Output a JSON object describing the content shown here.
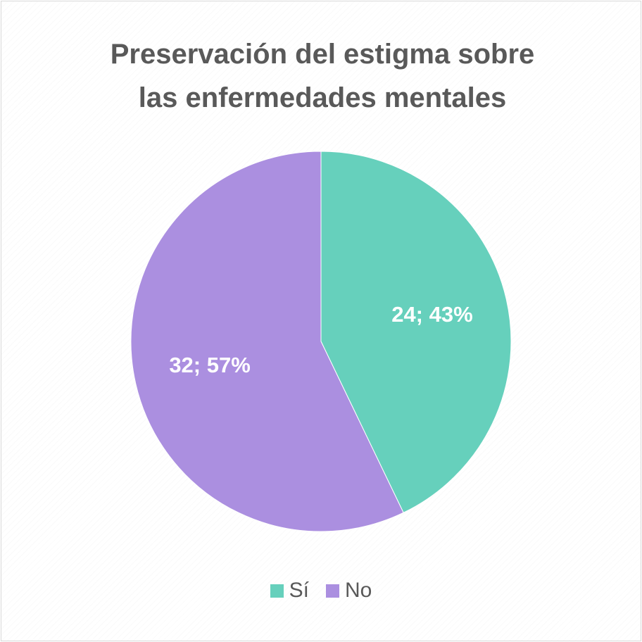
{
  "chart_data": {
    "type": "pie",
    "title_lines": [
      "Preservación del estigma sobre",
      "las enfermedades mentales"
    ],
    "slices": [
      {
        "label": "Sí",
        "value": 24,
        "percent": 43,
        "data_label": "24; 43%",
        "color": "#66d0bc"
      },
      {
        "label": "No",
        "value": 32,
        "percent": 57,
        "data_label": "32; 57%",
        "color": "#ab8fe0"
      }
    ],
    "start_angle_deg": 0,
    "direction": "clockwise",
    "legend_position": "bottom"
  }
}
